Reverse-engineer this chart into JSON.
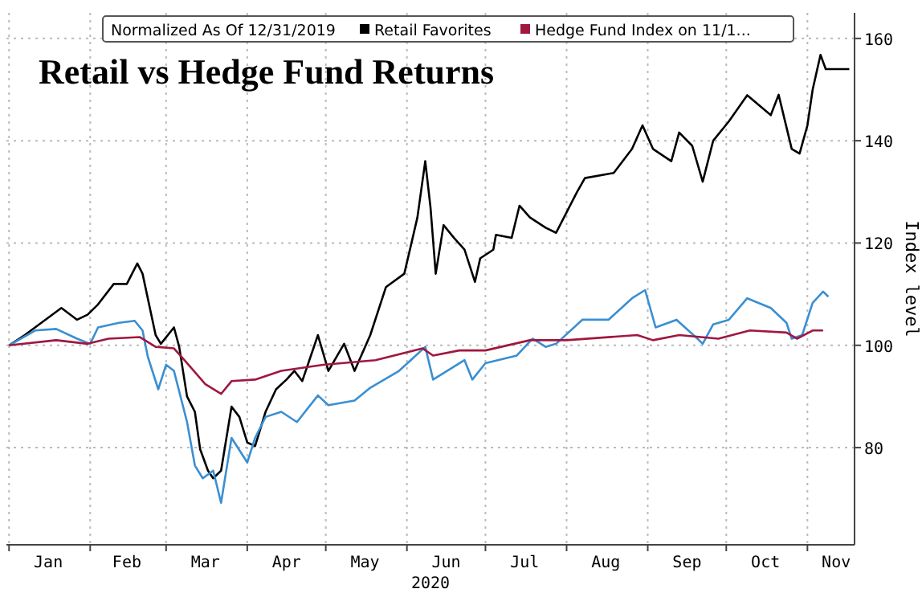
{
  "chart_data": {
    "type": "line",
    "title": "Retail vs Hedge Fund Returns",
    "legend_title": "Normalized As Of 12/31/2019",
    "xlabel": "2020",
    "ylabel": "Index level",
    "legend": "top",
    "grid": true,
    "line_style": "solid",
    "marker": "none",
    "xlim": [
      "2019-12-31",
      "2020-11-19"
    ],
    "xticks": [
      {
        "value": "2020-01-01",
        "label": null
      },
      {
        "value": "2020-01-16",
        "label": "Jan"
      },
      {
        "value": "2020-02-01",
        "label": null
      },
      {
        "value": "2020-02-15",
        "label": "Feb"
      },
      {
        "value": "2020-03-01",
        "label": null
      },
      {
        "value": "2020-03-16",
        "label": "Mar"
      },
      {
        "value": "2020-04-01",
        "label": null
      },
      {
        "value": "2020-04-16",
        "label": "Apr"
      },
      {
        "value": "2020-05-01",
        "label": null
      },
      {
        "value": "2020-05-16",
        "label": "May"
      },
      {
        "value": "2020-06-01",
        "label": null
      },
      {
        "value": "2020-06-16",
        "label": "Jun"
      },
      {
        "value": "2020-07-01",
        "label": null
      },
      {
        "value": "2020-07-16",
        "label": "Jul"
      },
      {
        "value": "2020-08-01",
        "label": null
      },
      {
        "value": "2020-08-16",
        "label": "Aug"
      },
      {
        "value": "2020-09-01",
        "label": null
      },
      {
        "value": "2020-09-16",
        "label": "Sep"
      },
      {
        "value": "2020-10-01",
        "label": null
      },
      {
        "value": "2020-10-16",
        "label": "Oct"
      },
      {
        "value": "2020-11-01",
        "label": null
      },
      {
        "value": "2020-11-12",
        "label": "Nov"
      }
    ],
    "ylim": [
      61,
      165
    ],
    "yticks": [
      80,
      100,
      120,
      140,
      160
    ],
    "series": [
      {
        "name": "Retail Favorites",
        "color": "#000000",
        "x": [
          "2020-01-01",
          "2020-01-07",
          "2020-01-21",
          "2020-01-27",
          "2020-01-31",
          "2020-02-04",
          "2020-02-10",
          "2020-02-15",
          "2020-02-19",
          "2020-02-21",
          "2020-02-26",
          "2020-02-28",
          "2020-03-04",
          "2020-03-06",
          "2020-03-09",
          "2020-03-12",
          "2020-03-14",
          "2020-03-17",
          "2020-03-19",
          "2020-03-22",
          "2020-03-26",
          "2020-03-29",
          "2020-04-01",
          "2020-04-04",
          "2020-04-08",
          "2020-04-12",
          "2020-04-16",
          "2020-04-19",
          "2020-04-22",
          "2020-04-28",
          "2020-05-02",
          "2020-05-08",
          "2020-05-12",
          "2020-05-18",
          "2020-05-24",
          "2020-05-31",
          "2020-06-05",
          "2020-06-08",
          "2020-06-10",
          "2020-06-12",
          "2020-06-15",
          "2020-06-19",
          "2020-06-23",
          "2020-06-27",
          "2020-06-29",
          "2020-07-04",
          "2020-07-05",
          "2020-07-11",
          "2020-07-14",
          "2020-07-18",
          "2020-07-24",
          "2020-07-28",
          "2020-08-05",
          "2020-08-08",
          "2020-08-19",
          "2020-08-26",
          "2020-08-30",
          "2020-09-03",
          "2020-09-10",
          "2020-09-13",
          "2020-09-18",
          "2020-09-22",
          "2020-09-26",
          "2020-10-02",
          "2020-10-09",
          "2020-10-18",
          "2020-10-21",
          "2020-10-26",
          "2020-10-29",
          "2020-11-01",
          "2020-11-03",
          "2020-11-06",
          "2020-11-08",
          "2020-11-17"
        ],
        "values": [
          100,
          102,
          107.3,
          105,
          106,
          108,
          112,
          112,
          116,
          114,
          102,
          100.3,
          103.5,
          99.7,
          90,
          87,
          79.7,
          75.5,
          74,
          75.5,
          88,
          86,
          81,
          80.3,
          87,
          91.4,
          93.3,
          95,
          93,
          102,
          95,
          100.3,
          95,
          102,
          111.4,
          114,
          125,
          136,
          127,
          114,
          123.5,
          121,
          118.7,
          112.4,
          117,
          118.7,
          121.6,
          121,
          127.3,
          125,
          123,
          122,
          130,
          132.7,
          133.7,
          138.4,
          143,
          138.4,
          136,
          141.6,
          139,
          132,
          140,
          143.8,
          148.9,
          145,
          149,
          138.4,
          137.5,
          143,
          150,
          156.8,
          154,
          154
        ]
      },
      {
        "color": "#3b8fd1",
        "x": [
          "2020-01-01",
          "2020-01-11",
          "2020-01-19",
          "2020-01-27",
          "2020-02-01",
          "2020-02-04",
          "2020-02-12",
          "2020-02-18",
          "2020-02-21",
          "2020-02-23",
          "2020-02-27",
          "2020-03-01",
          "2020-03-04",
          "2020-03-09",
          "2020-03-12",
          "2020-03-15",
          "2020-03-19",
          "2020-03-22",
          "2020-03-26",
          "2020-04-01",
          "2020-04-04",
          "2020-04-08",
          "2020-04-14",
          "2020-04-20",
          "2020-04-28",
          "2020-05-02",
          "2020-05-12",
          "2020-05-18",
          "2020-05-29",
          "2020-06-08",
          "2020-06-11",
          "2020-06-23",
          "2020-06-26",
          "2020-07-01",
          "2020-07-13",
          "2020-07-19",
          "2020-07-24",
          "2020-07-28",
          "2020-08-07",
          "2020-08-17",
          "2020-08-26",
          "2020-08-31",
          "2020-09-04",
          "2020-09-12",
          "2020-09-20",
          "2020-09-22",
          "2020-09-26",
          "2020-10-02",
          "2020-10-09",
          "2020-10-18",
          "2020-10-24",
          "2020-10-26",
          "2020-10-30",
          "2020-11-03",
          "2020-11-07",
          "2020-11-09"
        ],
        "values": [
          100,
          102.9,
          103.2,
          101.3,
          100.3,
          103.5,
          104.4,
          104.8,
          102.9,
          97.8,
          91.4,
          96.2,
          95,
          85,
          76.5,
          74,
          75.5,
          69.2,
          81.9,
          77.1,
          81.9,
          86,
          87,
          85,
          90.2,
          88.3,
          89.2,
          91.7,
          95,
          99.7,
          93.3,
          97.1,
          93.3,
          96.5,
          98,
          101.3,
          99.7,
          100.3,
          105,
          105,
          109.2,
          110.8,
          103.5,
          105,
          101.3,
          100.3,
          104.1,
          105,
          109.2,
          107.3,
          104.4,
          101.3,
          102,
          108.3,
          110.5,
          109.5
        ]
      },
      {
        "name": "Hedge Fund Index on 11/1...",
        "color": "#a0173f",
        "x": [
          "2020-01-01",
          "2020-01-19",
          "2020-01-31",
          "2020-02-08",
          "2020-02-20",
          "2020-02-26",
          "2020-03-04",
          "2020-03-08",
          "2020-03-16",
          "2020-03-22",
          "2020-03-26",
          "2020-04-04",
          "2020-04-14",
          "2020-04-30",
          "2020-05-20",
          "2020-06-07",
          "2020-06-11",
          "2020-06-21",
          "2020-07-01",
          "2020-07-18",
          "2020-08-01",
          "2020-08-28",
          "2020-09-03",
          "2020-09-13",
          "2020-09-28",
          "2020-10-10",
          "2020-10-24",
          "2020-10-28",
          "2020-11-03",
          "2020-11-07"
        ],
        "values": [
          100,
          101,
          100.3,
          101.3,
          101.6,
          99.7,
          99.4,
          97.1,
          92.4,
          90.5,
          93,
          93.3,
          95,
          96.2,
          97.1,
          99.4,
          98,
          99,
          99,
          101,
          101,
          102,
          101,
          102,
          101.3,
          102.9,
          102.5,
          101.3,
          102.9,
          102.9
        ]
      }
    ]
  }
}
